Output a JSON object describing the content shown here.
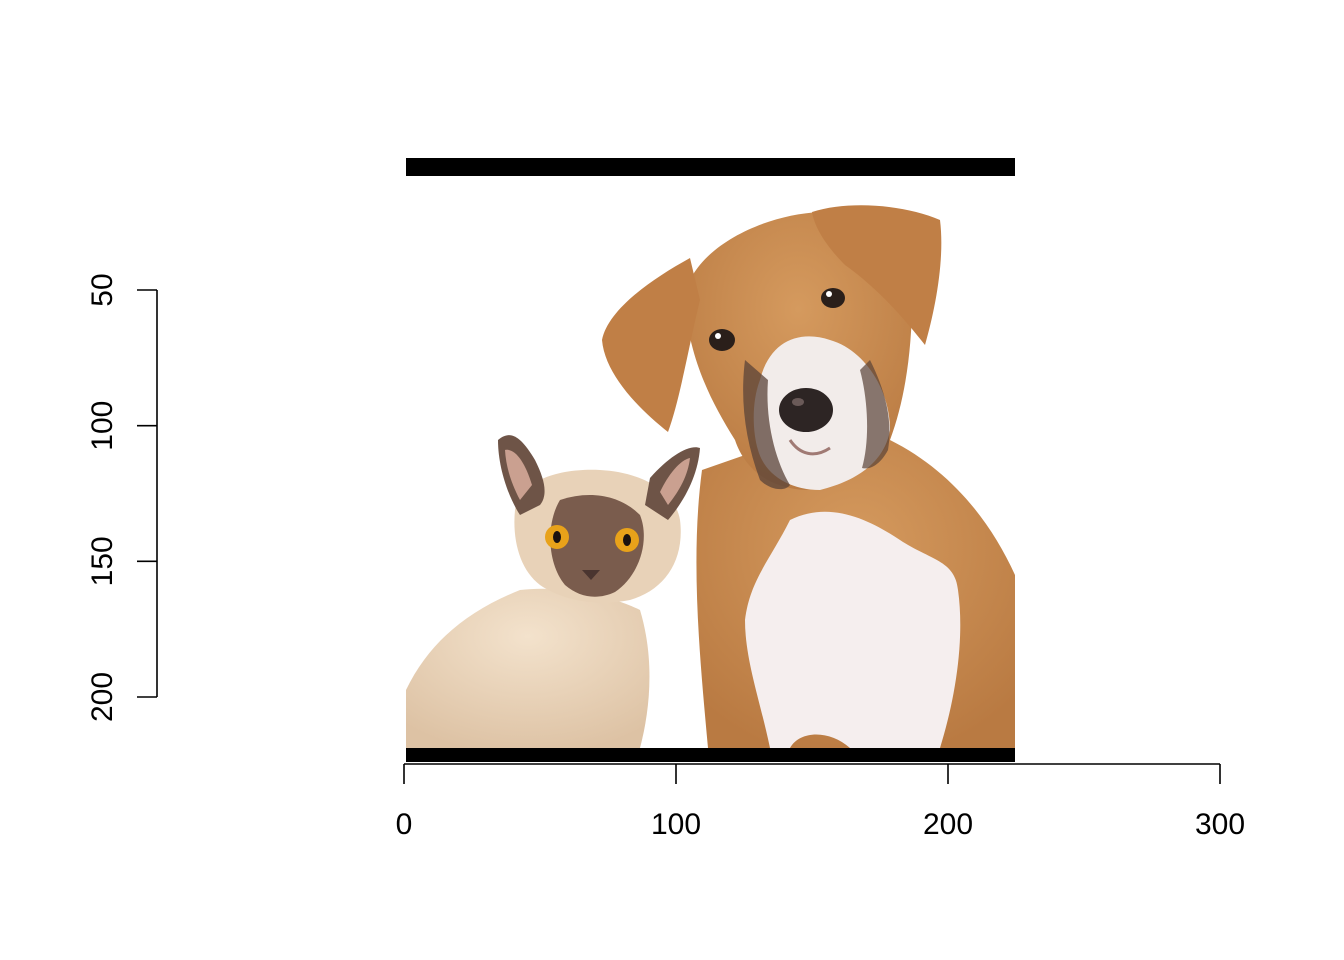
{
  "chart_data": {
    "type": "image",
    "title": "",
    "xlabel": "",
    "ylabel": "",
    "xlim": [
      0,
      300
    ],
    "ylim": [
      220,
      50
    ],
    "y_axis_inverted": true,
    "x_ticks": [
      0,
      100,
      200,
      300
    ],
    "x_tick_labels": [
      "0",
      "100",
      "200",
      "300"
    ],
    "y_ticks": [
      50,
      100,
      150,
      200
    ],
    "y_tick_labels": [
      "50",
      "100",
      "150",
      "200"
    ],
    "image": {
      "description": "photo of a Burmese cat and a tan boxer-mix puppy on white background",
      "x_range": [
        0,
        225
      ],
      "y_range": [
        0,
        225
      ]
    },
    "grid": false,
    "legend": "none"
  },
  "colors": {
    "frame": "#000000",
    "background": "#ffffff",
    "dog_fur": "#c98a4f",
    "cat_fur": "#ecd7bd",
    "cat_face": "#6e5447"
  }
}
